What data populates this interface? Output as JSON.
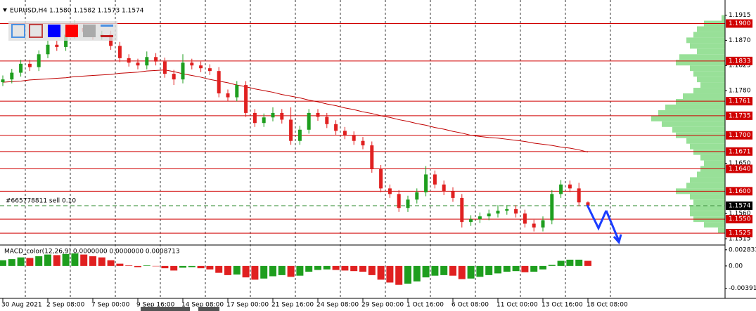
{
  "header": {
    "title": "EURUSD,H4  1.1580 1.1582 1.1573 1.1574"
  },
  "chart_data": [
    {
      "type": "candlestick",
      "categories": [
        "30 Aug 2021",
        null,
        null,
        null,
        null,
        "2 Sep 08:00",
        null,
        null,
        null,
        null,
        "7 Sep 00:00",
        null,
        null,
        null,
        null,
        "9 Sep 16:00",
        null,
        null,
        null,
        null,
        "14 Sep 08:00",
        null,
        null,
        null,
        null,
        "17 Sep 00:00",
        null,
        null,
        null,
        null,
        "21 Sep 16:00",
        null,
        null,
        null,
        null,
        "24 Sep 08:00",
        null,
        null,
        null,
        null,
        "29 Sep 00:00",
        null,
        null,
        null,
        null,
        "1 Oct 16:00",
        null,
        null,
        null,
        null,
        "6 Oct 08:00",
        null,
        null,
        null,
        null,
        "11 Oct 00:00",
        null,
        null,
        null,
        null,
        "13 Oct 16:00",
        null,
        null,
        null,
        null,
        "18 Oct 08:00"
      ],
      "open": [
        1.1795,
        1.18,
        1.1812,
        1.1828,
        1.1822,
        1.1845,
        1.1862,
        1.1858,
        1.188,
        1.1892,
        1.1885,
        1.1878,
        1.188,
        1.186,
        1.1838,
        1.183,
        1.1825,
        1.184,
        1.1832,
        1.181,
        1.18,
        1.183,
        1.1825,
        1.182,
        1.1815,
        1.1775,
        1.1768,
        1.179,
        1.174,
        1.1722,
        1.1732,
        1.174,
        1.1728,
        1.169,
        1.171,
        1.174,
        1.1733,
        1.172,
        1.1708,
        1.17,
        1.169,
        1.1682,
        1.164,
        1.1605,
        1.1595,
        1.157,
        1.1585,
        1.1598,
        1.163,
        1.1612,
        1.16,
        1.1588,
        1.1545,
        1.155,
        1.1555,
        1.156,
        1.1565,
        1.1568,
        1.156,
        1.1542,
        1.1535,
        1.1548,
        1.1595,
        1.1612,
        1.1605,
        1.158
      ],
      "high": [
        1.1807,
        1.1819,
        1.1835,
        1.1835,
        1.1852,
        1.1869,
        1.1869,
        1.1887,
        1.1905,
        1.1899,
        1.1892,
        1.1887,
        1.1887,
        1.1867,
        1.1845,
        1.1837,
        1.185,
        1.1847,
        1.1839,
        1.1817,
        1.1845,
        1.1837,
        1.1832,
        1.1827,
        1.1822,
        1.1782,
        1.1797,
        1.1797,
        1.1747,
        1.1739,
        1.175,
        1.1747,
        1.175,
        1.1717,
        1.1747,
        1.1747,
        1.174,
        1.1727,
        1.1715,
        1.1707,
        1.1697,
        1.1689,
        1.1647,
        1.1612,
        1.1602,
        1.1592,
        1.1605,
        1.1645,
        1.1637,
        1.1619,
        1.1607,
        1.1595,
        1.1557,
        1.1562,
        1.1567,
        1.1575,
        1.1575,
        1.1575,
        1.1567,
        1.1549,
        1.1555,
        1.1602,
        1.162,
        1.1619,
        1.1615,
        1.1582
      ],
      "low": [
        1.1788,
        1.1793,
        1.1805,
        1.1815,
        1.1815,
        1.1838,
        1.1851,
        1.1851,
        1.1873,
        1.1878,
        1.1871,
        1.1871,
        1.1853,
        1.1831,
        1.1823,
        1.1818,
        1.1818,
        1.1825,
        1.1803,
        1.179,
        1.1793,
        1.1818,
        1.1813,
        1.1808,
        1.1768,
        1.1761,
        1.1761,
        1.1733,
        1.1715,
        1.1715,
        1.1725,
        1.1721,
        1.1683,
        1.1683,
        1.1703,
        1.1726,
        1.1713,
        1.1701,
        1.1693,
        1.1683,
        1.1675,
        1.1633,
        1.1598,
        1.1588,
        1.1563,
        1.1563,
        1.1578,
        1.1591,
        1.1605,
        1.1593,
        1.1581,
        1.1535,
        1.1538,
        1.1543,
        1.1548,
        1.1553,
        1.1558,
        1.1553,
        1.1535,
        1.1528,
        1.1528,
        1.1541,
        1.1588,
        1.1598,
        1.1573,
        1.1573
      ],
      "close": [
        1.18,
        1.1812,
        1.1828,
        1.1822,
        1.1845,
        1.1862,
        1.1858,
        1.188,
        1.1892,
        1.1885,
        1.1878,
        1.188,
        1.186,
        1.1838,
        1.183,
        1.1825,
        1.184,
        1.1832,
        1.181,
        1.18,
        1.183,
        1.1825,
        1.182,
        1.1815,
        1.1775,
        1.1768,
        1.179,
        1.174,
        1.1722,
        1.1732,
        1.174,
        1.1728,
        1.169,
        1.171,
        1.174,
        1.1733,
        1.172,
        1.1708,
        1.17,
        1.169,
        1.1682,
        1.164,
        1.1605,
        1.1595,
        1.157,
        1.1585,
        1.1598,
        1.163,
        1.1612,
        1.16,
        1.1588,
        1.1545,
        1.155,
        1.1555,
        1.156,
        1.1565,
        1.1568,
        1.156,
        1.1542,
        1.1535,
        1.1548,
        1.1595,
        1.1612,
        1.1605,
        1.158,
        1.1574
      ],
      "up_color": "#1e9e1e",
      "down_color": "#e02020",
      "ma": {
        "color": "#c00000",
        "values": [
          1.1795,
          1.1796,
          1.1797,
          1.1799,
          1.18,
          1.1801,
          1.1802,
          1.1803,
          1.1805,
          1.1806,
          1.1807,
          1.1808,
          1.1809,
          1.1811,
          1.1812,
          1.1813,
          1.1815,
          1.1816,
          1.1817,
          1.1814,
          1.181,
          1.1807,
          1.1804,
          1.18,
          1.1797,
          1.1794,
          1.179,
          1.1787,
          1.1783,
          1.178,
          1.1777,
          1.1773,
          1.177,
          1.1767,
          1.1763,
          1.176,
          1.1756,
          1.1753,
          1.1749,
          1.1746,
          1.1742,
          1.1739,
          1.1735,
          1.1732,
          1.1728,
          1.1725,
          1.1721,
          1.1718,
          1.1714,
          1.1711,
          1.1707,
          1.1704,
          1.17,
          1.1698,
          1.1696,
          1.1695,
          1.1693,
          1.1691,
          1.1689,
          1.1686,
          1.1684,
          1.1682,
          1.1679,
          1.1677,
          1.1674,
          1.167
        ]
      },
      "ylim": [
        1.1505,
        1.1927
      ],
      "yticks": [
        1.1915,
        {
          "value": 1.187,
          "label": "1.1870"
        },
        1.1825,
        {
          "value": 1.178,
          "label": "1.1780"
        },
        {
          "value": 1.165,
          "label": "1.1650"
        },
        {
          "value": 1.156,
          "label": "1.1560"
        },
        1.1515
      ],
      "levels": [
        {
          "value": 1.19,
          "label": "1.1900"
        },
        1.1833,
        1.1761,
        1.1735,
        {
          "value": 1.17,
          "label": "1.1700"
        },
        1.1671,
        {
          "value": 1.164,
          "label": "1.1640"
        },
        {
          "value": 1.16,
          "label": "1.1600"
        },
        {
          "value": 1.155,
          "label": "1.1550"
        },
        1.1525
      ],
      "level_color": "#d00000",
      "current_price": 1.1574,
      "order": "#665778811 sell 0.10",
      "volume_profile": {
        "color": "#98e098",
        "prices": [
          1.153,
          1.154,
          1.155,
          1.156,
          1.157,
          1.158,
          1.159,
          1.16,
          1.161,
          1.162,
          1.163,
          1.164,
          1.165,
          1.166,
          1.167,
          1.168,
          1.169,
          1.17,
          1.171,
          1.172,
          1.173,
          1.174,
          1.175,
          1.176,
          1.177,
          1.178,
          1.179,
          1.18,
          1.181,
          1.182,
          1.183,
          1.184,
          1.185,
          1.186,
          1.187,
          1.188,
          1.189,
          1.19,
          1.191
        ],
        "values": [
          10,
          30,
          45,
          50,
          50,
          45,
          50,
          70,
          55,
          50,
          40,
          35,
          30,
          35,
          45,
          50,
          55,
          70,
          75,
          90,
          105,
          95,
          85,
          70,
          60,
          45,
          35,
          40,
          45,
          50,
          70,
          65,
          40,
          50,
          55,
          45,
          40,
          30,
          5
        ]
      }
    },
    {
      "type": "histogram",
      "title": "MACD_color(12,26,9) 0.0000000 0.0000000 0.0008713",
      "values": [
        0.001,
        0.0012,
        0.0015,
        0.0014,
        0.0017,
        0.002,
        0.0019,
        0.0021,
        0.0022,
        0.002,
        0.0017,
        0.0015,
        0.001,
        0.0004,
        0.0001,
        -0.0002,
        0.0001,
        0.0,
        -0.0004,
        -0.0008,
        -0.0003,
        -0.0002,
        -0.0004,
        -0.0006,
        -0.0012,
        -0.0016,
        -0.0015,
        -0.002,
        -0.0024,
        -0.0022,
        -0.0018,
        -0.0016,
        -0.0019,
        -0.0017,
        -0.001,
        -0.0007,
        -0.0006,
        -0.0007,
        -0.0008,
        -0.0009,
        -0.001,
        -0.0016,
        -0.0024,
        -0.0029,
        -0.0033,
        -0.0031,
        -0.0027,
        -0.002,
        -0.0017,
        -0.0016,
        -0.0017,
        -0.0023,
        -0.0022,
        -0.0019,
        -0.0016,
        -0.0013,
        -0.001,
        -0.0009,
        -0.0011,
        -0.001,
        -0.0006,
        0.0002,
        0.0009,
        0.0011,
        0.0011,
        0.0009
      ],
      "up_color": "#1e9e1e",
      "down_color": "#e02020",
      "ylim": [
        -0.0053,
        0.0033
      ],
      "yticks": [
        0.002833,
        {
          "value": 0,
          "label": "0.00"
        },
        -0.00391
      ]
    }
  ]
}
